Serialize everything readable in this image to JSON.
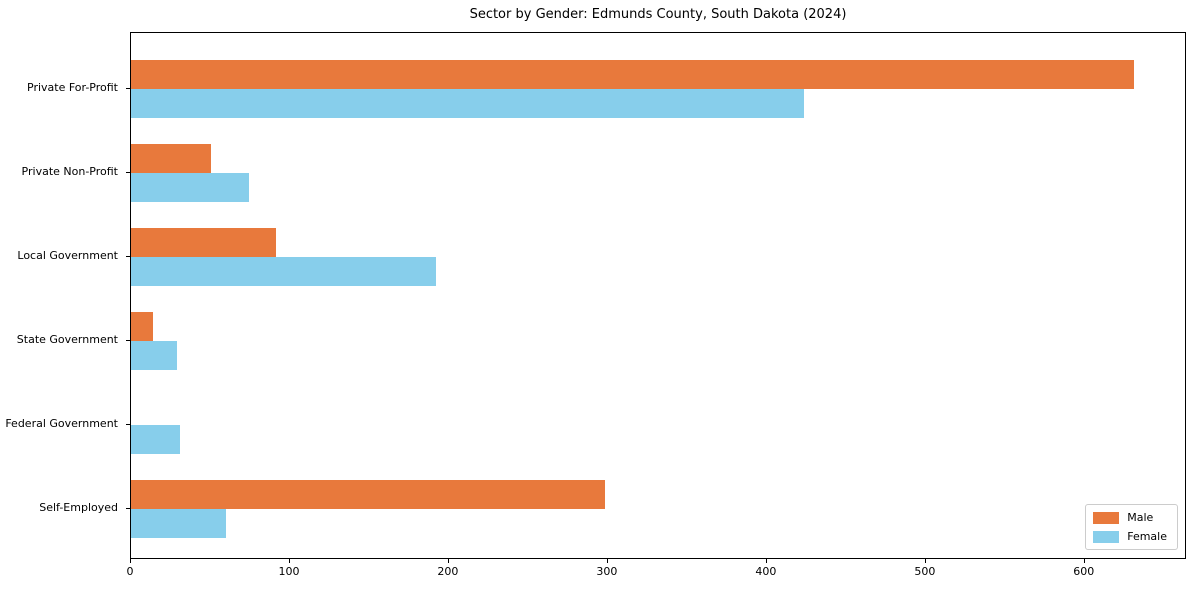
{
  "chart_data": {
    "type": "bar",
    "orientation": "horizontal",
    "title": "Sector by Gender: Edmunds County, South Dakota (2024)",
    "categories": [
      "Private For-Profit",
      "Private Non-Profit",
      "Local Government",
      "State Government",
      "Federal Government",
      "Self-Employed"
    ],
    "series": [
      {
        "name": "Male",
        "color": "#e8793c",
        "values": [
          631,
          50,
          91,
          14,
          0,
          298
        ]
      },
      {
        "name": "Female",
        "color": "#87ceeb",
        "values": [
          423,
          74,
          192,
          29,
          31,
          60
        ]
      }
    ],
    "xlabel": "",
    "ylabel": "",
    "xlim": [
      0,
      663
    ],
    "x_ticks": [
      0,
      100,
      200,
      300,
      400,
      500,
      600
    ],
    "grid": false,
    "legend_position": "lower right"
  }
}
